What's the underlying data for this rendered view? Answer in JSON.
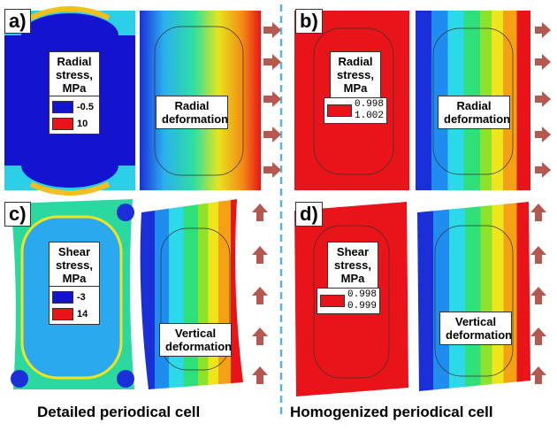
{
  "panels": [
    {
      "label": "a)",
      "stress_label": "Radial stress, MPa",
      "legend": [
        "-0.5",
        "10"
      ],
      "deformation_label": "Radial deformation"
    },
    {
      "label": "b)",
      "stress_label": "Radial stress, MPa",
      "legend": [
        "0.998",
        "1.002"
      ],
      "deformation_label": "Radial deformation"
    },
    {
      "label": "c)",
      "stress_label": "Shear stress, MPa",
      "legend": [
        "-3",
        "14"
      ],
      "deformation_label": "Vertical deformation"
    },
    {
      "label": "d)",
      "stress_label": "Shear stress, MPa",
      "legend": [
        "0.998",
        "0.999"
      ],
      "deformation_label": "Vertical deformation"
    }
  ],
  "captions": [
    "Detailed periodical cell",
    "Homogenized periodical cell"
  ]
}
